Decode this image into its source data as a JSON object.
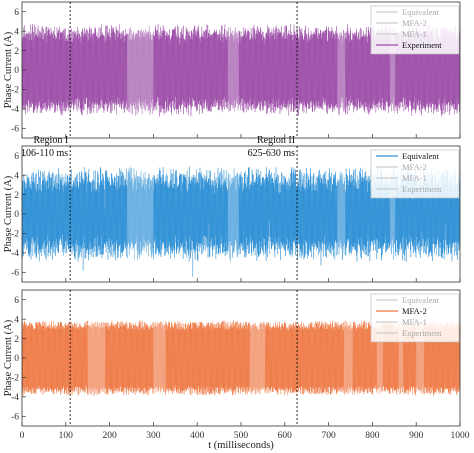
{
  "figure": {
    "xlabel": "t (milliseconds)",
    "ylabel": "Phase Current (A)",
    "xticks": [
      "0",
      "100",
      "200",
      "300",
      "400",
      "500",
      "600",
      "700",
      "800",
      "900",
      "1000"
    ],
    "annotations": [
      {
        "title": "Region I",
        "range": "106-110 ms",
        "x": 110
      },
      {
        "title": "Region II",
        "range": "625-630 ms",
        "x": 628
      }
    ]
  },
  "chart_data": [
    {
      "type": "line",
      "xlim": [
        0,
        1000
      ],
      "ylim": [
        -7,
        7
      ],
      "yticks": [
        "6",
        "4",
        "2",
        "0",
        "-2",
        "-4",
        "-6"
      ],
      "legend_position": "top-right",
      "legend": [
        "Equivalent",
        "MFA-2",
        "MFA-1",
        "Experiment"
      ],
      "highlighted": "Experiment",
      "color": "#9c4ea8",
      "amplitude": 4.2,
      "noise": 0.6,
      "x_unit": "ms",
      "series": [
        {
          "name": "Experiment",
          "x_range": [
            0,
            1000
          ]
        }
      ]
    },
    {
      "type": "line",
      "xlim": [
        0,
        1000
      ],
      "ylim": [
        -7,
        7
      ],
      "yticks": [
        "6",
        "4",
        "2",
        "0",
        "-2",
        "-4",
        "-6"
      ],
      "legend_position": "top-right",
      "legend": [
        "Equivalent",
        "MFA-2",
        "MFA-1",
        "Experiment"
      ],
      "highlighted": "Equivalent",
      "color": "#2d8fd5",
      "amplitude": 4.0,
      "noise": 1.0,
      "x_unit": "ms",
      "series": [
        {
          "name": "Equivalent",
          "x_range": [
            0,
            1000
          ]
        }
      ]
    },
    {
      "type": "line",
      "xlim": [
        0,
        1000
      ],
      "ylim": [
        -7,
        7
      ],
      "yticks": [
        "6",
        "4",
        "2",
        "0",
        "-2",
        "-4",
        "-6"
      ],
      "legend_position": "top-right",
      "legend": [
        "Equivalent",
        "MFA-2",
        "MFA-1",
        "Experiment"
      ],
      "highlighted": "MFA-2",
      "color": "#ef7a46",
      "amplitude": 3.8,
      "noise": 0.1,
      "x_unit": "ms",
      "series": [
        {
          "name": "MFA-2",
          "x_range": [
            0,
            1000
          ]
        }
      ]
    }
  ]
}
